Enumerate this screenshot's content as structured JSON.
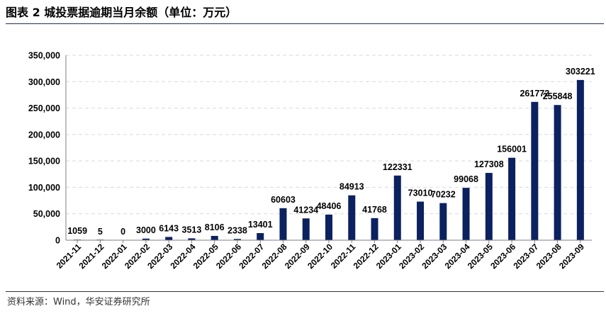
{
  "title": "图表 2  城投票据逾期当月余额（单位：万元）",
  "source": "资料来源：Wind，华安证券研究所",
  "colors": {
    "bar": "#0b2160",
    "grid": "#d9d9d9",
    "axis": "#7f7f7f",
    "rule": "#1f2f5a"
  },
  "chart_data": {
    "type": "bar",
    "title": "城投票据逾期当月余额（单位：万元）",
    "xlabel": "",
    "ylabel": "",
    "ylim": [
      0,
      350000
    ],
    "yticks": [
      0,
      50000,
      100000,
      150000,
      200000,
      250000,
      300000,
      350000
    ],
    "ytick_labels": [
      "0",
      "50,000",
      "100,000",
      "150,000",
      "200,000",
      "250,000",
      "300,000",
      "350,000"
    ],
    "grid": true,
    "legend": "none",
    "categories": [
      "2021-11",
      "2021-12",
      "2022-01",
      "2022-02",
      "2022-03",
      "2022-04",
      "2022-05",
      "2022-06",
      "2022-07",
      "2022-08",
      "2022-09",
      "2022-10",
      "2022-11",
      "2022-12",
      "2023-01",
      "2023-02",
      "2023-03",
      "2023-04",
      "2023-05",
      "2023-06",
      "2023-07",
      "2023-08",
      "2023-09"
    ],
    "values": [
      1059,
      5,
      0,
      3000,
      6143,
      3513,
      8106,
      2338,
      13401,
      60603,
      41234,
      48406,
      84913,
      41768,
      122331,
      73010,
      70232,
      99068,
      127308,
      156001,
      261772,
      255848,
      303221
    ]
  }
}
